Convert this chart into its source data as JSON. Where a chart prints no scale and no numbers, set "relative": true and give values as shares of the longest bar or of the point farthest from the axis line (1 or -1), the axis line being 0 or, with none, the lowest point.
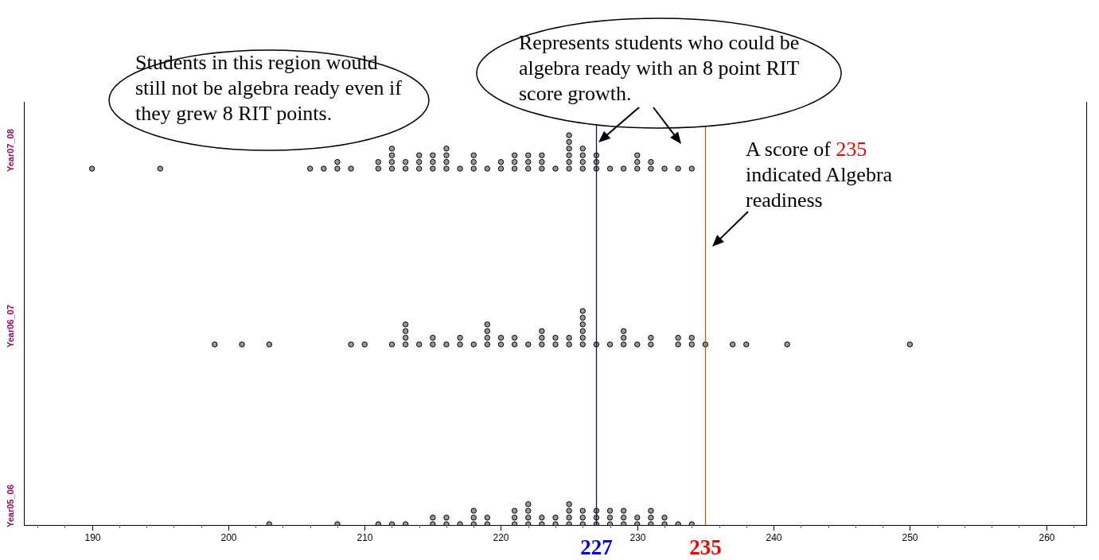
{
  "chart_data": [
    {
      "type": "scatter",
      "relative": true,
      "ylabel": "Year07_08",
      "xlim": [
        185,
        263
      ],
      "tick_labels": false,
      "marker": "circle",
      "grid": false,
      "legend": false,
      "series": [
        {
          "color": "#999999",
          "x": [
            190,
            195,
            206,
            207,
            208,
            208,
            209,
            211,
            211,
            212,
            212,
            212,
            212,
            213,
            213,
            214,
            214,
            214,
            215,
            215,
            215,
            216,
            216,
            216,
            216,
            217,
            218,
            218,
            218,
            219,
            220,
            220,
            221,
            221,
            221,
            222,
            222,
            222,
            223,
            223,
            223,
            224,
            225,
            225,
            225,
            225,
            225,
            225,
            226,
            226,
            226,
            226,
            227,
            227,
            227,
            228,
            229,
            230,
            230,
            230,
            231,
            231,
            232,
            233,
            234
          ],
          "values": [
            0,
            0,
            0,
            0,
            0,
            0.2,
            0,
            0,
            0.2,
            0,
            0.2,
            0.4,
            0.6,
            0,
            0.2,
            0,
            0.2,
            0.4,
            0,
            0.2,
            0.4,
            0,
            0.2,
            0.4,
            0.6,
            0,
            0,
            0.2,
            0.4,
            0,
            0,
            0.2,
            0,
            0.2,
            0.4,
            0,
            0.2,
            0.4,
            0,
            0.2,
            0.4,
            0,
            0,
            0.2,
            0.4,
            0.6,
            0.8,
            1,
            0,
            0.2,
            0.4,
            0.6,
            0,
            0.2,
            0.4,
            0,
            0,
            0,
            0.2,
            0.4,
            0,
            0.2,
            0,
            0,
            0
          ]
        }
      ],
      "ref_lines": [
        {
          "axis": "x",
          "value": 227,
          "color": "#0000cc"
        },
        {
          "axis": "x",
          "value": 235,
          "color": "#996633"
        }
      ],
      "annotations": [
        "Students in this region would still not be algebra ready even if they grew 8 RIT points.",
        "Represents students who could be algebra ready with an 8 point RIT score growth.",
        "A score of 235 indicated Algebra readiness"
      ]
    },
    {
      "type": "scatter",
      "relative": true,
      "ylabel": "Year06_07",
      "xlim": [
        185,
        263
      ],
      "tick_labels": false,
      "marker": "circle",
      "grid": false,
      "legend": false,
      "series": [
        {
          "color": "#999999",
          "x": [
            199,
            201,
            203,
            209,
            210,
            212,
            213,
            213,
            213,
            213,
            214,
            215,
            215,
            216,
            217,
            217,
            218,
            219,
            219,
            219,
            219,
            220,
            220,
            221,
            221,
            222,
            223,
            223,
            223,
            224,
            224,
            225,
            225,
            226,
            226,
            226,
            226,
            226,
            226,
            227,
            228,
            229,
            229,
            229,
            230,
            231,
            231,
            233,
            233,
            234,
            234,
            235,
            237,
            238,
            241,
            250
          ],
          "values": [
            0,
            0,
            0,
            0,
            0,
            0,
            0,
            0.2,
            0.4,
            0.6,
            0,
            0,
            0.2,
            0,
            0,
            0.2,
            0,
            0,
            0.2,
            0.4,
            0.6,
            0,
            0.2,
            0,
            0.2,
            0,
            0,
            0.2,
            0.4,
            0,
            0.2,
            0,
            0.2,
            0,
            0.2,
            0.4,
            0.6,
            0.8,
            1,
            0,
            0,
            0,
            0.2,
            0.4,
            0,
            0,
            0.2,
            0,
            0.2,
            0,
            0.2,
            0,
            0,
            0,
            0,
            0
          ]
        }
      ],
      "ref_lines": [
        {
          "axis": "x",
          "value": 227,
          "color": "#0000cc"
        },
        {
          "axis": "x",
          "value": 235,
          "color": "#996633"
        }
      ]
    },
    {
      "type": "scatter",
      "relative": true,
      "ylabel": "Year05_06",
      "xlim": [
        185,
        263
      ],
      "tick_labels": "x",
      "marker": "circle",
      "grid": false,
      "legend": false,
      "xticks": [
        {
          "value": 186,
          "label": null
        },
        {
          "value": 188,
          "label": null
        },
        190,
        {
          "value": 192,
          "label": null
        },
        {
          "value": 194,
          "label": null
        },
        {
          "value": 196,
          "label": null
        },
        {
          "value": 198,
          "label": null
        },
        200,
        {
          "value": 202,
          "label": null
        },
        {
          "value": 204,
          "label": null
        },
        {
          "value": 206,
          "label": null
        },
        {
          "value": 208,
          "label": null
        },
        210,
        {
          "value": 212,
          "label": null
        },
        {
          "value": 214,
          "label": null
        },
        {
          "value": 216,
          "label": null
        },
        {
          "value": 218,
          "label": null
        },
        220,
        {
          "value": 222,
          "label": null
        },
        {
          "value": 224,
          "label": null
        },
        {
          "value": 226,
          "label": null
        },
        {
          "value": 228,
          "label": null
        },
        230,
        {
          "value": 232,
          "label": null
        },
        {
          "value": 234,
          "label": null
        },
        {
          "value": 236,
          "label": null
        },
        {
          "value": 238,
          "label": null
        },
        240,
        {
          "value": 242,
          "label": null
        },
        {
          "value": 244,
          "label": null
        },
        {
          "value": 246,
          "label": null
        },
        {
          "value": 248,
          "label": null
        },
        250,
        {
          "value": 252,
          "label": null
        },
        {
          "value": 254,
          "label": null
        },
        {
          "value": 256,
          "label": null
        },
        {
          "value": 258,
          "label": null
        },
        260,
        {
          "value": 262,
          "label": null
        }
      ],
      "series": [
        {
          "color": "#999999",
          "x": [
            203,
            208,
            211,
            212,
            213,
            215,
            215,
            216,
            216,
            217,
            218,
            218,
            218,
            219,
            219,
            221,
            221,
            221,
            222,
            222,
            222,
            222,
            223,
            223,
            224,
            224,
            225,
            225,
            225,
            225,
            226,
            226,
            226,
            227,
            227,
            227,
            228,
            228,
            228,
            229,
            229,
            229,
            230,
            230,
            231,
            231,
            231,
            232,
            232,
            233,
            234
          ],
          "values": [
            0,
            0,
            0,
            0,
            0,
            0,
            0.33,
            0,
            0.33,
            0,
            0,
            0.33,
            0.67,
            0,
            0.33,
            0,
            0.33,
            0.67,
            0,
            0.33,
            0.67,
            1,
            0,
            0.33,
            0,
            0.33,
            0,
            0.33,
            0.67,
            1,
            0,
            0.33,
            0.67,
            0,
            0.33,
            0.67,
            0,
            0.33,
            0.67,
            0,
            0.33,
            0.67,
            0,
            0.33,
            0,
            0.33,
            0.67,
            0,
            0.33,
            0,
            0
          ]
        }
      ],
      "ref_lines": [
        {
          "axis": "x",
          "value": 227,
          "label": "227",
          "color": "#0000cc"
        },
        {
          "axis": "x",
          "value": 235,
          "label": "235",
          "color": "#996633"
        }
      ]
    }
  ]
}
